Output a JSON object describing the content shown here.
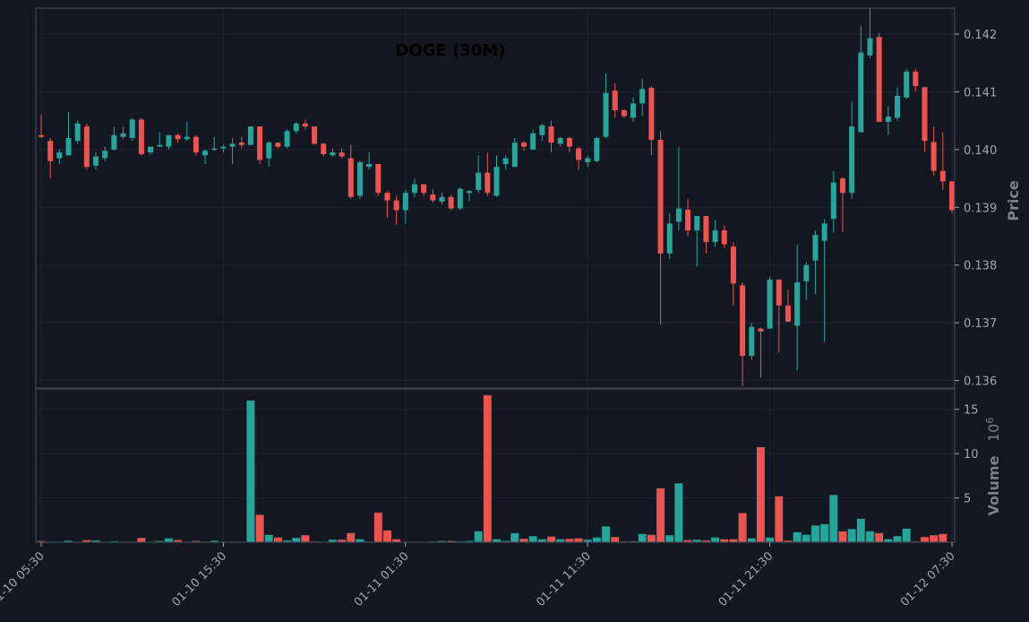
{
  "chart_data": [
    {
      "type": "candlestick",
      "title": "DOGE (30M)",
      "ylabel": "Price",
      "ylim": [
        0.13587,
        0.14245
      ],
      "yticks": [
        0.136,
        0.137,
        0.138,
        0.139,
        0.14,
        0.141,
        0.142
      ],
      "ytick_labels": [
        "0.136",
        "0.137",
        "0.138",
        "0.139",
        "0.140",
        "0.141",
        "0.142"
      ],
      "xtick_labels": [
        "01-10 05:30",
        "01-10 15:30",
        "01-11 01:30",
        "01-11 11:30",
        "01-11 21:30",
        "01-12 07:30"
      ],
      "xtick_index": [
        0,
        20,
        40,
        60,
        80,
        100
      ],
      "grid": true,
      "candles": [
        [
          0.14025,
          0.1406,
          0.1402,
          0.14022
        ],
        [
          0.14015,
          0.1402,
          0.1395,
          0.1398
        ],
        [
          0.13985,
          0.14,
          0.13975,
          0.13995
        ],
        [
          0.1399,
          0.14065,
          0.1399,
          0.1402
        ],
        [
          0.14015,
          0.1405,
          0.1401,
          0.14045
        ],
        [
          0.1404,
          0.14045,
          0.13965,
          0.1397
        ],
        [
          0.13972,
          0.13995,
          0.13965,
          0.13988
        ],
        [
          0.13985,
          0.14005,
          0.1398,
          0.13998
        ],
        [
          0.14,
          0.1404,
          0.13998,
          0.14025
        ],
        [
          0.14022,
          0.1404,
          0.14018,
          0.14028
        ],
        [
          0.1402,
          0.14055,
          0.14015,
          0.14052
        ],
        [
          0.14052,
          0.14055,
          0.1399,
          0.13992
        ],
        [
          0.13995,
          0.14005,
          0.1399,
          0.14005
        ],
        [
          0.14005,
          0.1403,
          0.14005,
          0.14008
        ],
        [
          0.14005,
          0.14025,
          0.14,
          0.14025
        ],
        [
          0.14025,
          0.14028,
          0.14012,
          0.14018
        ],
        [
          0.14018,
          0.14048,
          0.14015,
          0.14022
        ],
        [
          0.14022,
          0.14025,
          0.1399,
          0.13995
        ],
        [
          0.1399,
          0.14,
          0.13975,
          0.13998
        ],
        [
          0.14,
          0.14022,
          0.13998,
          0.14002
        ],
        [
          0.14002,
          0.14008,
          0.13995,
          0.14005
        ],
        [
          0.14005,
          0.1402,
          0.13975,
          0.1401
        ],
        [
          0.14012,
          0.14022,
          0.14002,
          0.14008
        ],
        [
          0.14008,
          0.1404,
          0.14008,
          0.1404
        ],
        [
          0.1404,
          0.1404,
          0.13975,
          0.13982
        ],
        [
          0.13985,
          0.14015,
          0.1397,
          0.14012
        ],
        [
          0.14012,
          0.14012,
          0.14002,
          0.14005
        ],
        [
          0.14005,
          0.14035,
          0.14002,
          0.14032
        ],
        [
          0.14032,
          0.14048,
          0.14028,
          0.14045
        ],
        [
          0.14045,
          0.14052,
          0.14035,
          0.1404
        ],
        [
          0.1404,
          0.1404,
          0.14008,
          0.1401
        ],
        [
          0.1401,
          0.14012,
          0.13988,
          0.13992
        ],
        [
          0.1399,
          0.14002,
          0.13988,
          0.13995
        ],
        [
          0.13995,
          0.14002,
          0.13985,
          0.13988
        ],
        [
          0.13985,
          0.14008,
          0.13915,
          0.13918
        ],
        [
          0.1392,
          0.1398,
          0.13915,
          0.13978
        ],
        [
          0.1397,
          0.13995,
          0.13965,
          0.13975
        ],
        [
          0.13975,
          0.13975,
          0.1392,
          0.13925
        ],
        [
          0.13925,
          0.13928,
          0.13882,
          0.13912
        ],
        [
          0.13912,
          0.1392,
          0.1387,
          0.13895
        ],
        [
          0.13895,
          0.1393,
          0.13872,
          0.13925
        ],
        [
          0.13925,
          0.1395,
          0.13918,
          0.1394
        ],
        [
          0.1394,
          0.1394,
          0.1392,
          0.13925
        ],
        [
          0.13922,
          0.13932,
          0.13908,
          0.13912
        ],
        [
          0.1391,
          0.13925,
          0.13905,
          0.13918
        ],
        [
          0.13918,
          0.13922,
          0.13895,
          0.13898
        ],
        [
          0.13898,
          0.13935,
          0.13895,
          0.13932
        ],
        [
          0.13925,
          0.1393,
          0.1391,
          0.13928
        ],
        [
          0.1393,
          0.1399,
          0.13925,
          0.1396
        ],
        [
          0.1396,
          0.13995,
          0.1392,
          0.13925
        ],
        [
          0.1392,
          0.1399,
          0.13918,
          0.1397
        ],
        [
          0.13975,
          0.1399,
          0.13965,
          0.13985
        ],
        [
          0.1397,
          0.1402,
          0.1397,
          0.14012
        ],
        [
          0.14012,
          0.14015,
          0.13998,
          0.14005
        ],
        [
          0.14,
          0.14035,
          0.14,
          0.14028
        ],
        [
          0.14025,
          0.14045,
          0.14015,
          0.14042
        ],
        [
          0.1404,
          0.1405,
          0.13995,
          0.14012
        ],
        [
          0.1401,
          0.14022,
          0.14005,
          0.1402
        ],
        [
          0.1402,
          0.14022,
          0.13995,
          0.14005
        ],
        [
          0.14002,
          0.14005,
          0.13965,
          0.13982
        ],
        [
          0.13978,
          0.1399,
          0.1397,
          0.13985
        ],
        [
          0.1398,
          0.14022,
          0.13978,
          0.1402
        ],
        [
          0.14022,
          0.14132,
          0.1402,
          0.14098
        ],
        [
          0.14102,
          0.14115,
          0.14055,
          0.14068
        ],
        [
          0.14068,
          0.1407,
          0.14055,
          0.14058
        ],
        [
          0.14055,
          0.1409,
          0.14048,
          0.1408
        ],
        [
          0.1408,
          0.14122,
          0.14058,
          0.14105
        ],
        [
          0.14107,
          0.1411,
          0.1399,
          0.14017
        ],
        [
          0.14017,
          0.14032,
          0.13697,
          0.1382
        ],
        [
          0.1382,
          0.1389,
          0.1381,
          0.13872
        ],
        [
          0.13875,
          0.14004,
          0.1386,
          0.13898
        ],
        [
          0.13896,
          0.13915,
          0.1385,
          0.1386
        ],
        [
          0.1386,
          0.13884,
          0.13797,
          0.13885
        ],
        [
          0.13885,
          0.13885,
          0.1382,
          0.1384
        ],
        [
          0.1384,
          0.13878,
          0.13832,
          0.1386
        ],
        [
          0.1386,
          0.13868,
          0.1383,
          0.13836
        ],
        [
          0.13832,
          0.1384,
          0.1373,
          0.13768
        ],
        [
          0.13765,
          0.1377,
          0.1359,
          0.13643
        ],
        [
          0.13643,
          0.137,
          0.13636,
          0.13693
        ],
        [
          0.1369,
          0.13692,
          0.13605,
          0.13685
        ],
        [
          0.1369,
          0.1378,
          0.1369,
          0.13775
        ],
        [
          0.13775,
          0.13775,
          0.13648,
          0.1373
        ],
        [
          0.1373,
          0.13757,
          0.13705,
          0.13702
        ],
        [
          0.13695,
          0.13835,
          0.13618,
          0.1377
        ],
        [
          0.13772,
          0.13805,
          0.1374,
          0.138
        ],
        [
          0.13808,
          0.1386,
          0.1375,
          0.13852
        ],
        [
          0.13842,
          0.1388,
          0.13667,
          0.13872
        ],
        [
          0.1388,
          0.13962,
          0.13856,
          0.13943
        ],
        [
          0.1395,
          0.13952,
          0.13857,
          0.13925
        ],
        [
          0.13925,
          0.14082,
          0.13915,
          0.1404
        ],
        [
          0.1403,
          0.14215,
          0.1403,
          0.14168
        ],
        [
          0.14163,
          0.14245,
          0.14158,
          0.14193
        ],
        [
          0.14195,
          0.14202,
          0.14048,
          0.14048
        ],
        [
          0.14048,
          0.14075,
          0.14025,
          0.14057
        ],
        [
          0.14055,
          0.14108,
          0.1405,
          0.14093
        ],
        [
          0.1409,
          0.1414,
          0.14088,
          0.14135
        ],
        [
          0.14135,
          0.1414,
          0.141,
          0.1411
        ],
        [
          0.14108,
          0.14108,
          0.13996,
          0.14015
        ],
        [
          0.14013,
          0.1404,
          0.13955,
          0.13963
        ],
        [
          0.13963,
          0.1403,
          0.1393,
          0.13945
        ],
        [
          0.13945,
          0.13945,
          0.1389,
          0.13895
        ]
      ]
    },
    {
      "type": "bar",
      "ylabel": "Volume",
      "y_multiplier_label": "10",
      "y_multiplier_exp": "6",
      "ylim": [
        0,
        17.3
      ],
      "yticks": [
        5,
        10,
        15
      ],
      "ytick_labels": [
        "5",
        "10",
        "15"
      ],
      "grid": true,
      "values": [
        0.15,
        0.05,
        0.02,
        0.18,
        0.05,
        0.25,
        0.2,
        0.05,
        0.12,
        0.05,
        0.05,
        0.5,
        0.05,
        0.15,
        0.45,
        0.25,
        0.05,
        0.15,
        0.08,
        0.18,
        0.05,
        0.08,
        0.05,
        16.0,
        3.1,
        0.85,
        0.55,
        0.2,
        0.5,
        0.8,
        0.1,
        0.08,
        0.3,
        0.3,
        1.05,
        0.35,
        0.08,
        3.35,
        1.35,
        0.35,
        0.05,
        0.05,
        0.05,
        0.1,
        0.15,
        0.15,
        0.1,
        0.15,
        1.25,
        16.6,
        0.35,
        0.15,
        1.05,
        0.4,
        0.7,
        0.35,
        0.65,
        0.35,
        0.4,
        0.45,
        0.3,
        0.55,
        1.8,
        0.6,
        0.1,
        0.12,
        0.95,
        0.85,
        6.1,
        0.8,
        6.65,
        0.25,
        0.3,
        0.2,
        0.55,
        0.35,
        0.35,
        3.3,
        0.45,
        10.75,
        0.55,
        5.2,
        0.2,
        1.15,
        0.85,
        1.9,
        2.05,
        5.35,
        1.25,
        1.5,
        2.65,
        1.25,
        1.05,
        0.35,
        0.7,
        1.55,
        0.1,
        0.6,
        0.8,
        0.95,
        0.05
      ]
    }
  ],
  "colors": {
    "up": "#26a69a",
    "down": "#ef5350",
    "background": "#131722",
    "frame": "#3f4450",
    "grid": "#1f2430",
    "tick_text": "#a3a6ad",
    "axis_label": "#7d808a",
    "title": "#000000"
  }
}
